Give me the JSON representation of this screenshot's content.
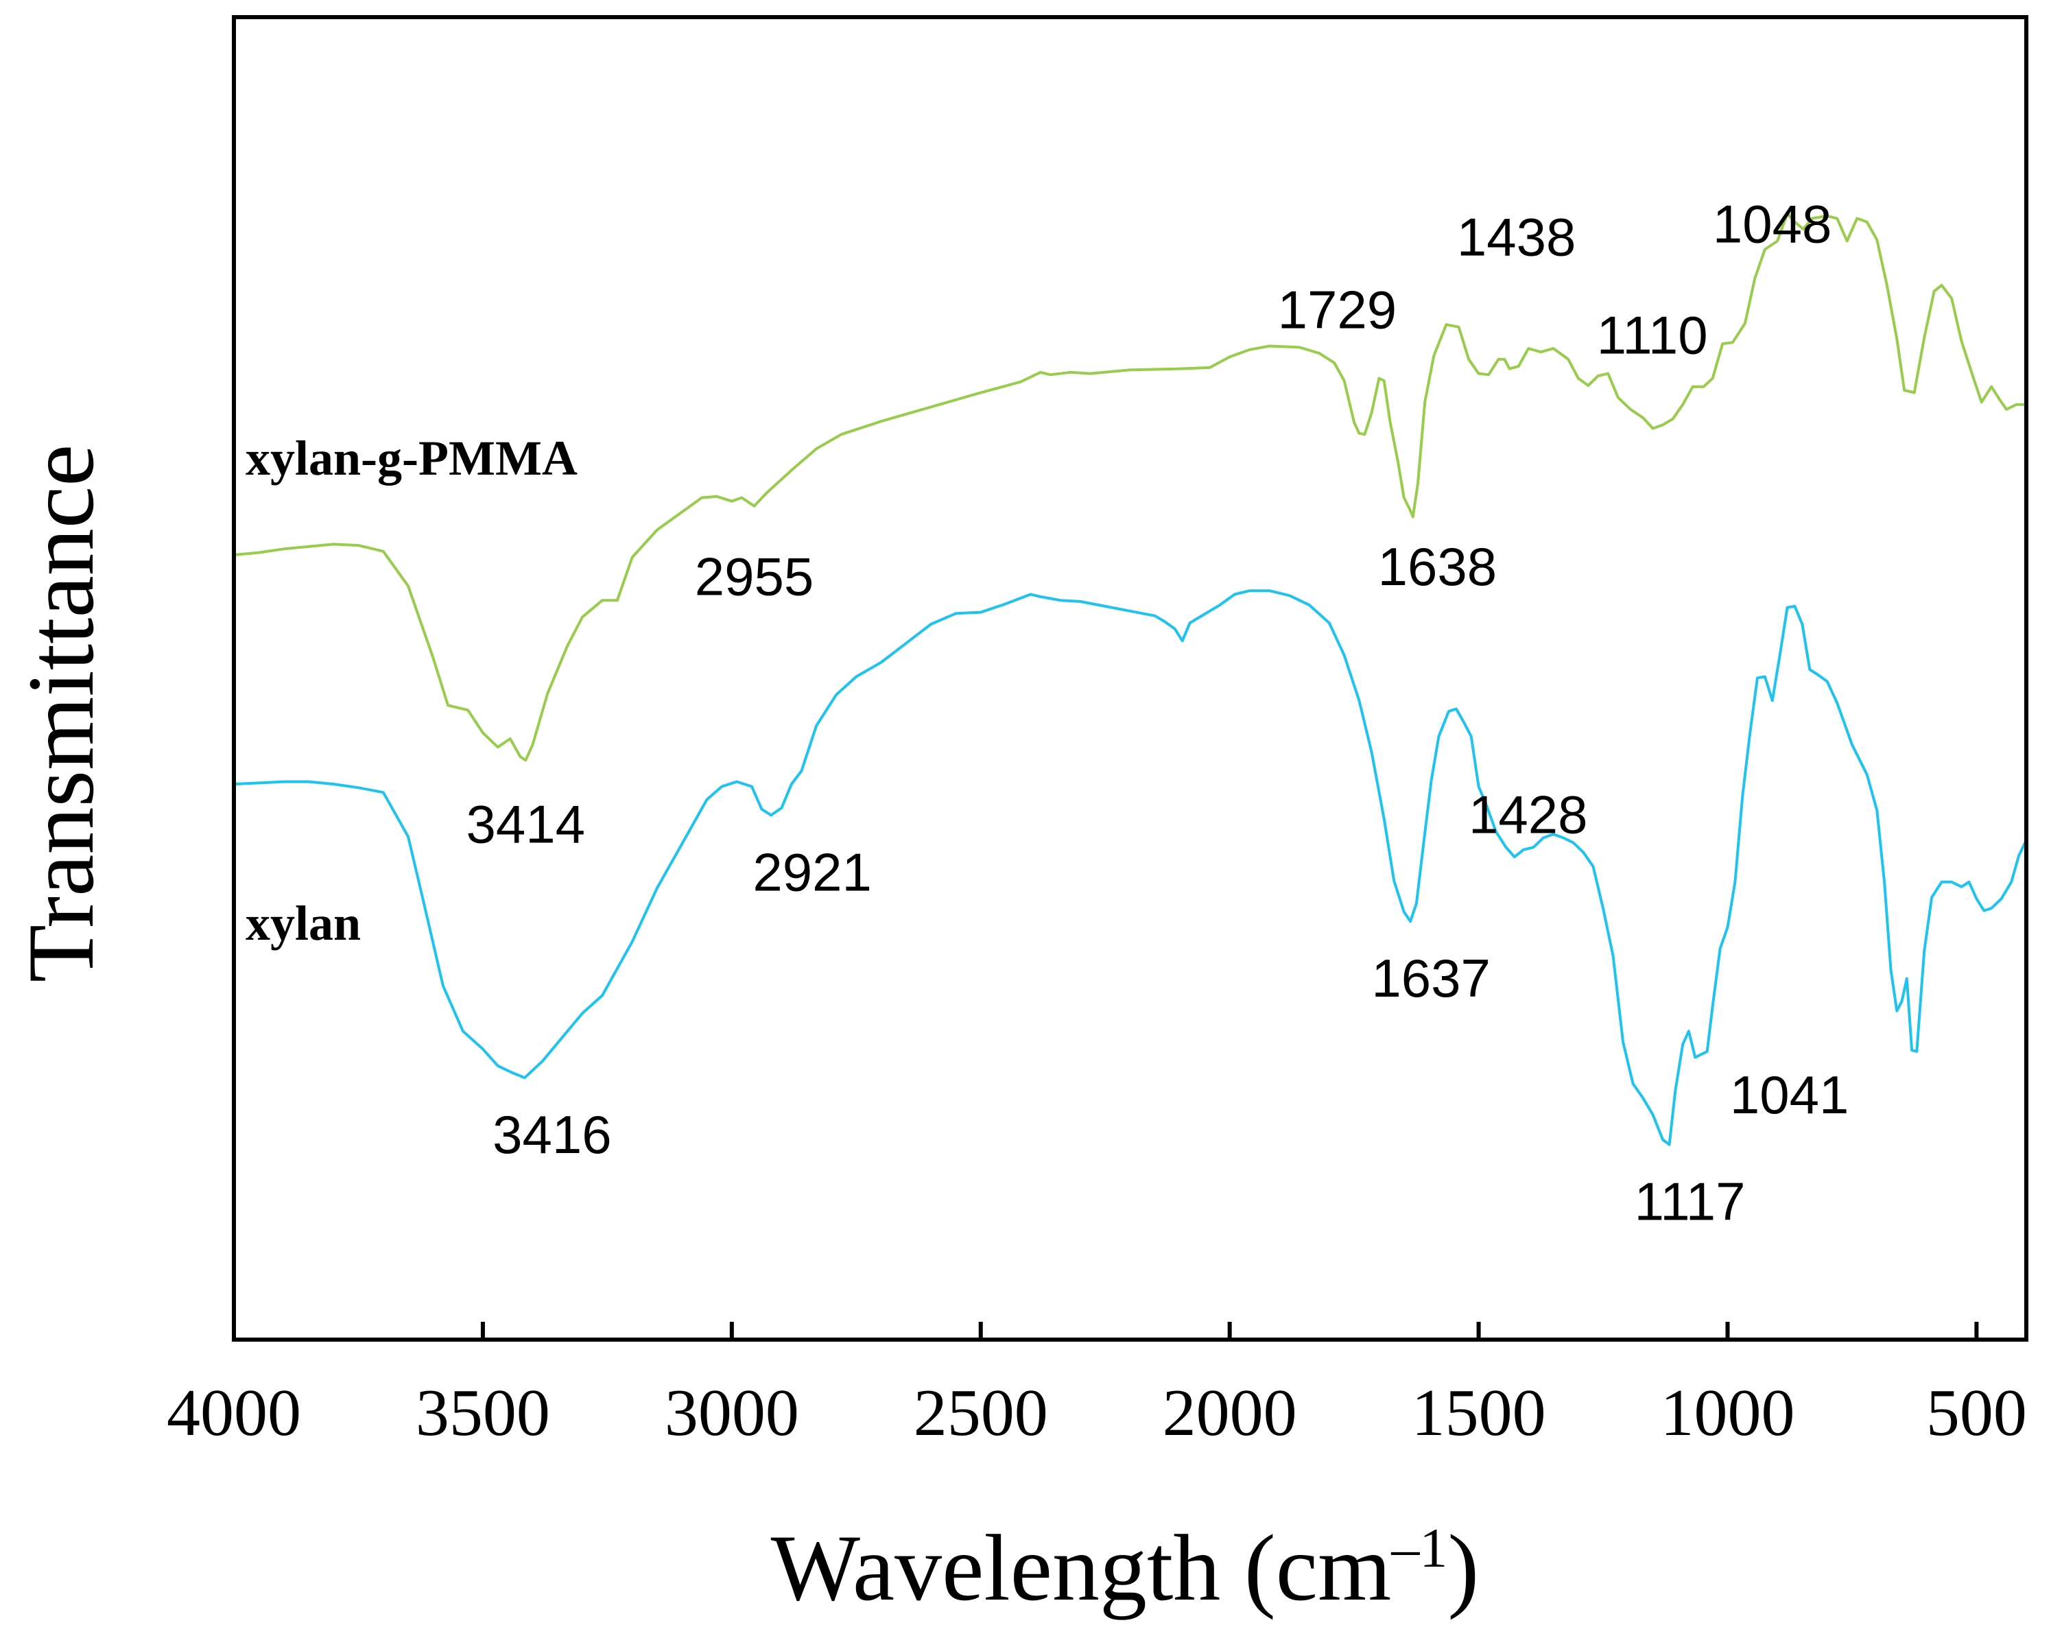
{
  "chart_data": {
    "type": "line",
    "title": "",
    "xlabel": "Wavelength (cm",
    "xlabel_unit_sup": "–1",
    "xlabel_close": ")",
    "ylabel": "Transmittance",
    "xlim": [
      4000,
      400
    ],
    "x_reversed": true,
    "ylim": [
      0,
      100
    ],
    "x_ticks": [
      4000,
      3500,
      3000,
      2500,
      2000,
      1500,
      1000,
      500
    ],
    "x_tick_labels": [
      "4000",
      "3500",
      "3000",
      "2500",
      "2000",
      "1500",
      "1000",
      "500"
    ],
    "y_ticks_shown": false,
    "grid": false,
    "series": [
      {
        "name": "xylan-g-PMMA",
        "color": "#99CC4D",
        "points": [
          [
            4000,
            60.4
          ],
          [
            3950,
            60.6
          ],
          [
            3900,
            60.9
          ],
          [
            3800,
            61.3
          ],
          [
            3750,
            61.2
          ],
          [
            3700,
            60.7
          ],
          [
            3650,
            57.8
          ],
          [
            3600,
            51.8
          ],
          [
            3570,
            47.8
          ],
          [
            3530,
            47.4
          ],
          [
            3500,
            45.5
          ],
          [
            3470,
            44.3
          ],
          [
            3445,
            45.0
          ],
          [
            3425,
            43.5
          ],
          [
            3414,
            43.2
          ],
          [
            3400,
            44.5
          ],
          [
            3370,
            48.8
          ],
          [
            3330,
            52.8
          ],
          [
            3300,
            55.2
          ],
          [
            3260,
            56.6
          ],
          [
            3230,
            56.6
          ],
          [
            3200,
            60.2
          ],
          [
            3150,
            62.5
          ],
          [
            3100,
            64.0
          ],
          [
            3060,
            65.2
          ],
          [
            3030,
            65.3
          ],
          [
            3000,
            64.9
          ],
          [
            2980,
            65.2
          ],
          [
            2955,
            64.5
          ],
          [
            2930,
            65.6
          ],
          [
            2880,
            67.5
          ],
          [
            2830,
            69.3
          ],
          [
            2780,
            70.5
          ],
          [
            2700,
            71.6
          ],
          [
            2600,
            72.8
          ],
          [
            2500,
            74.0
          ],
          [
            2420,
            74.9
          ],
          [
            2380,
            75.7
          ],
          [
            2360,
            75.5
          ],
          [
            2320,
            75.7
          ],
          [
            2280,
            75.6
          ],
          [
            2200,
            75.9
          ],
          [
            2100,
            76.0
          ],
          [
            2040,
            76.1
          ],
          [
            2000,
            77.0
          ],
          [
            1960,
            77.6
          ],
          [
            1920,
            77.9
          ],
          [
            1860,
            77.8
          ],
          [
            1820,
            77.3
          ],
          [
            1790,
            76.5
          ],
          [
            1770,
            75.0
          ],
          [
            1750,
            71.5
          ],
          [
            1740,
            70.6
          ],
          [
            1729,
            70.5
          ],
          [
            1715,
            72.3
          ],
          [
            1700,
            75.2
          ],
          [
            1690,
            75.0
          ],
          [
            1678,
            71.6
          ],
          [
            1662,
            68.2
          ],
          [
            1650,
            65.2
          ],
          [
            1638,
            64.2
          ],
          [
            1632,
            63.6
          ],
          [
            1622,
            66.4
          ],
          [
            1608,
            73.2
          ],
          [
            1590,
            77.1
          ],
          [
            1565,
            79.7
          ],
          [
            1540,
            79.5
          ],
          [
            1520,
            76.8
          ],
          [
            1500,
            75.6
          ],
          [
            1480,
            75.5
          ],
          [
            1460,
            76.8
          ],
          [
            1448,
            76.8
          ],
          [
            1438,
            76.0
          ],
          [
            1420,
            76.2
          ],
          [
            1400,
            77.7
          ],
          [
            1375,
            77.4
          ],
          [
            1350,
            77.7
          ],
          [
            1320,
            76.8
          ],
          [
            1300,
            75.2
          ],
          [
            1280,
            74.6
          ],
          [
            1260,
            75.4
          ],
          [
            1240,
            75.6
          ],
          [
            1220,
            73.6
          ],
          [
            1195,
            72.6
          ],
          [
            1170,
            71.9
          ],
          [
            1150,
            71.0
          ],
          [
            1130,
            71.3
          ],
          [
            1110,
            71.8
          ],
          [
            1090,
            73.0
          ],
          [
            1070,
            74.5
          ],
          [
            1048,
            74.5
          ],
          [
            1030,
            75.2
          ],
          [
            1010,
            78.1
          ],
          [
            990,
            78.2
          ],
          [
            965,
            79.8
          ],
          [
            945,
            83.6
          ],
          [
            925,
            86.0
          ],
          [
            900,
            86.7
          ],
          [
            880,
            89.0
          ],
          [
            865,
            88.3
          ],
          [
            848,
            87.7
          ],
          [
            830,
            88.6
          ],
          [
            800,
            88.8
          ],
          [
            780,
            88.6
          ],
          [
            760,
            86.7
          ],
          [
            740,
            88.6
          ],
          [
            720,
            88.3
          ],
          [
            700,
            86.8
          ],
          [
            680,
            83.0
          ],
          [
            660,
            78.5
          ],
          [
            645,
            74.2
          ],
          [
            625,
            74.0
          ],
          [
            605,
            78.6
          ],
          [
            585,
            82.5
          ],
          [
            570,
            83.0
          ],
          [
            550,
            81.9
          ],
          [
            530,
            78.3
          ],
          [
            510,
            75.7
          ],
          [
            490,
            73.2
          ],
          [
            470,
            74.5
          ],
          [
            455,
            73.5
          ],
          [
            440,
            72.6
          ],
          [
            420,
            73.0
          ],
          [
            400,
            73.0
          ]
        ]
      },
      {
        "name": "xylan",
        "color": "#1FC3EE",
        "points": [
          [
            4000,
            41.2
          ],
          [
            3950,
            41.3
          ],
          [
            3900,
            41.4
          ],
          [
            3850,
            41.4
          ],
          [
            3800,
            41.2
          ],
          [
            3750,
            40.9
          ],
          [
            3700,
            40.5
          ],
          [
            3650,
            36.8
          ],
          [
            3620,
            31.5
          ],
          [
            3580,
            24.3
          ],
          [
            3540,
            20.5
          ],
          [
            3500,
            19.0
          ],
          [
            3470,
            17.6
          ],
          [
            3440,
            17.0
          ],
          [
            3416,
            16.6
          ],
          [
            3380,
            18.0
          ],
          [
            3340,
            20.0
          ],
          [
            3300,
            22.0
          ],
          [
            3260,
            23.5
          ],
          [
            3200,
            28.0
          ],
          [
            3150,
            32.5
          ],
          [
            3100,
            36.2
          ],
          [
            3050,
            39.9
          ],
          [
            3020,
            41.0
          ],
          [
            2990,
            41.4
          ],
          [
            2960,
            41.0
          ],
          [
            2940,
            39.1
          ],
          [
            2921,
            38.6
          ],
          [
            2900,
            39.2
          ],
          [
            2880,
            41.2
          ],
          [
            2860,
            42.3
          ],
          [
            2830,
            46.1
          ],
          [
            2790,
            48.7
          ],
          [
            2750,
            50.2
          ],
          [
            2700,
            51.4
          ],
          [
            2650,
            53.0
          ],
          [
            2600,
            54.6
          ],
          [
            2550,
            55.5
          ],
          [
            2500,
            55.6
          ],
          [
            2450,
            56.3
          ],
          [
            2400,
            57.1
          ],
          [
            2380,
            56.9
          ],
          [
            2340,
            56.6
          ],
          [
            2300,
            56.5
          ],
          [
            2250,
            56.1
          ],
          [
            2200,
            55.7
          ],
          [
            2150,
            55.3
          ],
          [
            2130,
            54.8
          ],
          [
            2110,
            54.2
          ],
          [
            2095,
            53.2
          ],
          [
            2080,
            54.7
          ],
          [
            2060,
            55.2
          ],
          [
            2020,
            56.2
          ],
          [
            1990,
            57.1
          ],
          [
            1960,
            57.4
          ],
          [
            1920,
            57.4
          ],
          [
            1880,
            57.0
          ],
          [
            1840,
            56.2
          ],
          [
            1800,
            54.7
          ],
          [
            1770,
            52.0
          ],
          [
            1740,
            48.2
          ],
          [
            1715,
            43.9
          ],
          [
            1690,
            38.3
          ],
          [
            1670,
            33.1
          ],
          [
            1650,
            30.5
          ],
          [
            1637,
            29.7
          ],
          [
            1625,
            31.2
          ],
          [
            1610,
            36.4
          ],
          [
            1595,
            41.5
          ],
          [
            1580,
            45.2
          ],
          [
            1560,
            47.3
          ],
          [
            1545,
            47.5
          ],
          [
            1530,
            46.4
          ],
          [
            1515,
            45.2
          ],
          [
            1500,
            41.0
          ],
          [
            1485,
            39.5
          ],
          [
            1465,
            37.2
          ],
          [
            1445,
            35.9
          ],
          [
            1428,
            35.1
          ],
          [
            1410,
            35.7
          ],
          [
            1390,
            35.9
          ],
          [
            1370,
            36.7
          ],
          [
            1350,
            37.0
          ],
          [
            1330,
            36.7
          ],
          [
            1310,
            36.3
          ],
          [
            1290,
            35.5
          ],
          [
            1270,
            34.3
          ],
          [
            1250,
            30.8
          ],
          [
            1230,
            26.8
          ],
          [
            1210,
            19.6
          ],
          [
            1190,
            16.1
          ],
          [
            1170,
            14.9
          ],
          [
            1150,
            13.5
          ],
          [
            1130,
            11.4
          ],
          [
            1117,
            11.0
          ],
          [
            1105,
            15.5
          ],
          [
            1090,
            19.4
          ],
          [
            1078,
            20.5
          ],
          [
            1065,
            18.3
          ],
          [
            1041,
            18.8
          ],
          [
            1030,
            22.6
          ],
          [
            1015,
            27.4
          ],
          [
            1000,
            29.2
          ],
          [
            985,
            33.0
          ],
          [
            970,
            40.2
          ],
          [
            955,
            45.5
          ],
          [
            940,
            50.1
          ],
          [
            925,
            50.2
          ],
          [
            910,
            48.2
          ],
          [
            895,
            52.0
          ],
          [
            880,
            56.0
          ],
          [
            865,
            56.1
          ],
          [
            850,
            54.6
          ],
          [
            835,
            50.8
          ],
          [
            820,
            50.4
          ],
          [
            800,
            49.8
          ],
          [
            780,
            48.0
          ],
          [
            750,
            44.5
          ],
          [
            720,
            42.0
          ],
          [
            700,
            39.0
          ],
          [
            685,
            33.0
          ],
          [
            672,
            25.6
          ],
          [
            660,
            22.2
          ],
          [
            650,
            23.0
          ],
          [
            640,
            24.9
          ],
          [
            630,
            18.9
          ],
          [
            620,
            18.8
          ],
          [
            605,
            27.2
          ],
          [
            590,
            31.7
          ],
          [
            570,
            33.0
          ],
          [
            550,
            33.0
          ],
          [
            530,
            32.6
          ],
          [
            515,
            33.0
          ],
          [
            500,
            31.6
          ],
          [
            485,
            30.6
          ],
          [
            470,
            30.8
          ],
          [
            450,
            31.6
          ],
          [
            430,
            33.0
          ],
          [
            415,
            35.2
          ],
          [
            400,
            36.5
          ]
        ]
      }
    ],
    "series_labels": [
      "xylan-g-PMMA",
      "xylan"
    ],
    "peak_annotations": [
      {
        "series": "xylan-g-PMMA",
        "label": "3414",
        "x": 3414
      },
      {
        "series": "xylan-g-PMMA",
        "label": "2955",
        "x": 2955
      },
      {
        "series": "xylan-g-PMMA",
        "label": "1729",
        "x": 1729
      },
      {
        "series": "xylan-g-PMMA",
        "label": "1638",
        "x": 1638
      },
      {
        "series": "xylan-g-PMMA",
        "label": "1438",
        "x": 1438
      },
      {
        "series": "xylan-g-PMMA",
        "label": "1110",
        "x": 1110
      },
      {
        "series": "xylan-g-PMMA",
        "label": "1048",
        "x": 1048
      },
      {
        "series": "xylan",
        "label": "3416",
        "x": 3416
      },
      {
        "series": "xylan",
        "label": "2921",
        "x": 2921
      },
      {
        "series": "xylan",
        "label": "1637",
        "x": 1637
      },
      {
        "series": "xylan",
        "label": "1428",
        "x": 1428
      },
      {
        "series": "xylan",
        "label": "1117",
        "x": 1117
      },
      {
        "series": "xylan",
        "label": "1041",
        "x": 1041
      }
    ]
  }
}
